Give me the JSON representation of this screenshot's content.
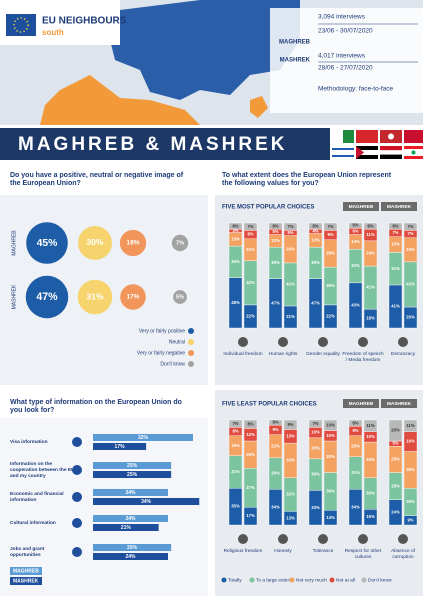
{
  "header": {
    "logo_title": "EU NEIGHBOURS",
    "logo_subtitle": "south",
    "samples": [
      {
        "region": "MAGHREB",
        "interviews": "3,094 interviews",
        "dates": "23/06 - 30/07/2020"
      },
      {
        "region": "MASHREK",
        "interviews": "4,017 interviews",
        "dates": "28/06 - 27/07/2020"
      }
    ],
    "methodology": "Methodology: face-to-face",
    "banner": "MAGHREB & MASHREK"
  },
  "chart_data": [
    {
      "type": "bubble",
      "title": "Do you have a positive, neutral or negative image of the European Union?",
      "categories": [
        "MAGHREB",
        "MASHREK"
      ],
      "series": [
        {
          "name": "Very or fairly positive",
          "color": "#1d5ca6",
          "values": [
            45,
            47
          ],
          "value_labels": [
            "45%",
            "47%"
          ]
        },
        {
          "name": "Neutral",
          "color": "#f6d36c",
          "values": [
            30,
            31
          ],
          "value_labels": [
            "30%",
            "31%"
          ]
        },
        {
          "name": "Very or fairly negative",
          "color": "#f2955a",
          "values": [
            18,
            17
          ],
          "value_labels": [
            "18%",
            "17%"
          ]
        },
        {
          "name": "Don't know",
          "color": "#a3a3a3",
          "values": [
            7,
            5
          ],
          "value_labels": [
            "7%",
            "5%"
          ]
        }
      ]
    },
    {
      "type": "hbar",
      "title": "What type of information on the European Union do you look for?",
      "xlim": [
        0,
        40
      ],
      "categories": [
        "Visa information",
        "Information on the cooperation between the EU and my country",
        "Economic and financial information",
        "Cultural information",
        "Jobs and grant opportunities"
      ],
      "series": [
        {
          "name": "MAGHREB",
          "color": "#5b9bd5",
          "values": [
            32,
            25,
            24,
            24,
            25
          ],
          "value_labels": [
            "32%",
            "25%",
            "24%",
            "24%",
            "25%"
          ]
        },
        {
          "name": "MASHREK",
          "color": "#1f4e9c",
          "values": [
            17,
            25,
            34,
            21,
            24
          ],
          "value_labels": [
            "17%",
            "25%",
            "34%",
            "21%",
            "24%"
          ]
        }
      ]
    },
    {
      "type": "stacked_bar",
      "title": "To what extent does the European Union represent the following values for you?",
      "ylim": [
        0,
        100
      ],
      "groups": [
        "MAGHREB",
        "MASHREK"
      ],
      "series": [
        {
          "name": "Totally",
          "color": "#1d5ca6"
        },
        {
          "name": "To a large extent",
          "color": "#7cc3a0"
        },
        {
          "name": "Not very much",
          "color": "#f4a261"
        },
        {
          "name": "Not at all",
          "color": "#e04b3f"
        },
        {
          "name": "Don't know",
          "color": "#b8b8b8"
        }
      ],
      "panels": [
        {
          "subtitle": "FIVE MOST POPULAR CHOICES",
          "categories": [
            "Individual freedom",
            "Human rights",
            "Gender equality",
            "Freedom of speech / Media freedom",
            "Democracy"
          ],
          "values": [
            [
              [
                48,
                22
              ],
              [
                47,
                21
              ],
              [
                47,
                22
              ],
              [
                43,
                18
              ],
              [
                41,
                20
              ]
            ],
            [
              [
                30,
                42
              ],
              [
                30,
                41
              ],
              [
                30,
                36
              ],
              [
                32,
                41
              ],
              [
                31,
                43
              ]
            ],
            [
              [
                13,
                21
              ],
              [
                12,
                26
              ],
              [
                13,
                26
              ],
              [
                14,
                24
              ],
              [
                15,
                23
              ]
            ],
            [
              [
                3,
                8
              ],
              [
                5,
                5
              ],
              [
                4,
                9
              ],
              [
                6,
                11
              ],
              [
                7,
                7
              ]
            ],
            [
              [
                6,
                7
              ],
              [
                6,
                7
              ],
              [
                6,
                7
              ],
              [
                5,
                6
              ],
              [
                6,
                7
              ]
            ]
          ],
          "value_labels": [
            [
              [
                "48%",
                "22%"
              ],
              [
                "47%",
                "21%"
              ],
              [
                "47%",
                "22%"
              ],
              [
                "43%",
                "18%"
              ],
              [
                "41%",
                "20%"
              ]
            ],
            [
              [
                "30%",
                "42%"
              ],
              [
                "30%",
                "41%"
              ],
              [
                "30%",
                "36%"
              ],
              [
                "32%",
                "41%"
              ],
              [
                "31%",
                "43%"
              ]
            ],
            [
              [
                "13%",
                "21%"
              ],
              [
                "12%",
                "26%"
              ],
              [
                "13%",
                "26%"
              ],
              [
                "14%",
                "24%"
              ],
              [
                "15%",
                "23%"
              ]
            ],
            [
              [
                "3%",
                "8%"
              ],
              [
                "5%",
                "5%"
              ],
              [
                "4%",
                "9%"
              ],
              [
                "6%",
                "11%"
              ],
              [
                "7%",
                "7%"
              ]
            ],
            [
              [
                "6%",
                "7%"
              ],
              [
                "6%",
                "7%"
              ],
              [
                "6%",
                "7%"
              ],
              [
                "5%",
                "6%"
              ],
              [
                "6%",
                "7%"
              ]
            ]
          ]
        },
        {
          "subtitle": "FIVE LEAST POPULAR CHOICES",
          "categories": [
            "Religious freedom",
            "Honesty",
            "Tolerance",
            "Respect for other cultures",
            "Absence of corruption"
          ],
          "values": [
            [
              [
                35,
                17
              ],
              [
                34,
                13
              ],
              [
                33,
                14
              ],
              [
                34,
                15
              ],
              [
                24,
                9
              ]
            ],
            [
              [
                31,
                37
              ],
              [
                30,
                32
              ],
              [
                30,
                36
              ],
              [
                31,
                30
              ],
              [
                26,
                26
              ]
            ],
            [
              [
                19,
                26
              ],
              [
                22,
                33
              ],
              [
                20,
                30
              ],
              [
                20,
                34
              ],
              [
                25,
                35
              ]
            ],
            [
              [
                8,
                12
              ],
              [
                9,
                13
              ],
              [
                10,
                10
              ],
              [
                9,
                10
              ],
              [
                5,
                19
              ]
            ],
            [
              [
                7,
                8
              ],
              [
                5,
                9
              ],
              [
                7,
                10
              ],
              [
                6,
                11
              ],
              [
                20,
                11
              ]
            ]
          ],
          "value_labels": [
            [
              [
                "35%",
                "17%"
              ],
              [
                "34%",
                "13%"
              ],
              [
                "33%",
                "14%"
              ],
              [
                "34%",
                "15%"
              ],
              [
                "24%",
                "9%"
              ]
            ],
            [
              [
                "31%",
                "37%"
              ],
              [
                "30%",
                "32%"
              ],
              [
                "30%",
                "36%"
              ],
              [
                "31%",
                "30%"
              ],
              [
                "26%",
                "26%"
              ]
            ],
            [
              [
                "19%",
                "26%"
              ],
              [
                "22%",
                "33%"
              ],
              [
                "20%",
                "30%"
              ],
              [
                "20%",
                "34%"
              ],
              [
                "25%",
                "35%"
              ]
            ],
            [
              [
                "8%",
                "12%"
              ],
              [
                "9%",
                "13%"
              ],
              [
                "10%",
                "10%"
              ],
              [
                "9%",
                "10%"
              ],
              [
                "5%",
                "19%"
              ]
            ],
            [
              [
                "7%",
                "8%"
              ],
              [
                "5%",
                "9%"
              ],
              [
                "7%",
                "10%"
              ],
              [
                "6%",
                "11%"
              ],
              [
                "20%",
                "11%"
              ]
            ]
          ]
        }
      ]
    }
  ]
}
